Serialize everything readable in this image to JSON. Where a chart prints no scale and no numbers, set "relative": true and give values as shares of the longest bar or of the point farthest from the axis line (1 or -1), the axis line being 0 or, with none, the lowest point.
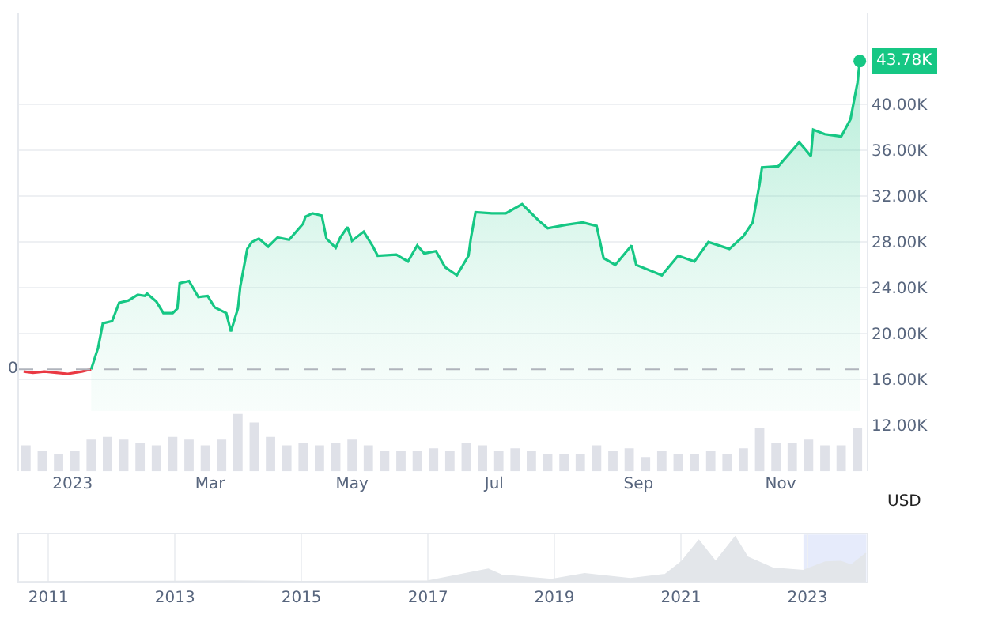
{
  "chart_data": [
    {
      "type": "line",
      "xlim": [
        "2022-12-09",
        "2023-12-08"
      ],
      "ylim": [
        8000,
        48000
      ],
      "xticks": [
        {
          "value": "2023-01-01",
          "label": "2023"
        },
        {
          "value": "2023-03-01",
          "label": "Mar"
        },
        {
          "value": "2023-05-01",
          "label": "May"
        },
        {
          "value": "2023-07-01",
          "label": "Jul"
        },
        {
          "value": "2023-09-01",
          "label": "Sep"
        },
        {
          "value": "2023-11-01",
          "label": "Nov"
        }
      ],
      "yticks": [
        {
          "value": 12000,
          "label": "12.00K"
        },
        {
          "value": 16000,
          "label": "16.00K"
        },
        {
          "value": 20000,
          "label": "20.00K"
        },
        {
          "value": 24000,
          "label": "24.00K"
        },
        {
          "value": 28000,
          "label": "28.00K"
        },
        {
          "value": 32000,
          "label": "32.00K"
        },
        {
          "value": 36000,
          "label": "36.00K"
        },
        {
          "value": 40000,
          "label": "40.00K"
        }
      ],
      "ylabel": "USD",
      "grid": "y",
      "legend": false,
      "ref_lines": [
        {
          "axis": "y",
          "value": 16900,
          "color": "#b0b4bc",
          "line_style": "dashed"
        }
      ],
      "annotations": [
        "0"
      ],
      "series": [
        {
          "type": "line",
          "color": "#ea3943",
          "x": [
            "2022-12-11",
            "2022-12-15",
            "2022-12-20",
            "2022-12-25",
            "2022-12-30",
            "2023-01-05",
            "2023-01-09"
          ],
          "values": [
            16700,
            16600,
            16700,
            16600,
            16500,
            16700,
            16900
          ]
        },
        {
          "type": "area",
          "color": "#16c784",
          "x": [
            "2023-01-09",
            "2023-01-12",
            "2023-01-14",
            "2023-01-18",
            "2023-01-21",
            "2023-01-25",
            "2023-01-29",
            "2023-02-01",
            "2023-02-02",
            "2023-02-06",
            "2023-02-09",
            "2023-02-13",
            "2023-02-15",
            "2023-02-16",
            "2023-02-20",
            "2023-02-24",
            "2023-02-28",
            "2023-03-03",
            "2023-03-08",
            "2023-03-10",
            "2023-03-13",
            "2023-03-14",
            "2023-03-17",
            "2023-03-19",
            "2023-03-22",
            "2023-03-26",
            "2023-03-30",
            "2023-04-04",
            "2023-04-10",
            "2023-04-11",
            "2023-04-14",
            "2023-04-18",
            "2023-04-20",
            "2023-04-24",
            "2023-04-26",
            "2023-04-29",
            "2023-05-01",
            "2023-05-06",
            "2023-05-10",
            "2023-05-12",
            "2023-05-20",
            "2023-05-25",
            "2023-05-29",
            "2023-06-01",
            "2023-06-06",
            "2023-06-10",
            "2023-06-15",
            "2023-06-20",
            "2023-06-21",
            "2023-06-23",
            "2023-06-30",
            "2023-07-06",
            "2023-07-13",
            "2023-07-20",
            "2023-07-24",
            "2023-08-01",
            "2023-08-08",
            "2023-08-14",
            "2023-08-17",
            "2023-08-22",
            "2023-08-29",
            "2023-08-31",
            "2023-09-11",
            "2023-09-18",
            "2023-09-25",
            "2023-10-01",
            "2023-10-10",
            "2023-10-16",
            "2023-10-20",
            "2023-10-23",
            "2023-10-24",
            "2023-10-31",
            "2023-11-09",
            "2023-11-14",
            "2023-11-15",
            "2023-11-20",
            "2023-11-27",
            "2023-12-01",
            "2023-12-04",
            "2023-12-05"
          ],
          "values": [
            16900,
            18800,
            20900,
            21100,
            22700,
            22900,
            23400,
            23300,
            23500,
            22800,
            21800,
            21800,
            22200,
            24400,
            24600,
            23200,
            23300,
            22300,
            21800,
            20200,
            22200,
            24100,
            27400,
            28000,
            28300,
            27600,
            28400,
            28200,
            29600,
            30200,
            30500,
            30300,
            28300,
            27500,
            28400,
            29300,
            28100,
            28900,
            27600,
            26800,
            26900,
            26300,
            27700,
            27000,
            27200,
            25800,
            25100,
            26800,
            28300,
            30600,
            30500,
            30500,
            31300,
            29900,
            29200,
            29500,
            29700,
            29400,
            26600,
            26000,
            27700,
            26000,
            25100,
            26800,
            26300,
            28000,
            27400,
            28500,
            29700,
            33100,
            34500,
            34600,
            36700,
            35500,
            37800,
            37400,
            37200,
            38700,
            41900,
            43780
          ],
          "value_labels": [
            null,
            null,
            null,
            null,
            null,
            null,
            null,
            null,
            null,
            null,
            null,
            null,
            null,
            null,
            null,
            null,
            null,
            null,
            null,
            null,
            null,
            null,
            null,
            null,
            null,
            null,
            null,
            null,
            null,
            null,
            null,
            null,
            null,
            null,
            null,
            null,
            null,
            null,
            null,
            null,
            null,
            null,
            null,
            null,
            null,
            null,
            null,
            null,
            null,
            null,
            null,
            null,
            null,
            null,
            null,
            null,
            null,
            null,
            null,
            null,
            null,
            null,
            null,
            null,
            null,
            null,
            null,
            null,
            null,
            null,
            null,
            null,
            null,
            null,
            null,
            null,
            null,
            null,
            null,
            "43.78K"
          ]
        }
      ]
    },
    {
      "type": "bar",
      "relative": true,
      "tick_labels": false,
      "xlim": [
        "2022-12-09",
        "2023-12-08"
      ],
      "color": "#dfe1e8",
      "x": [
        "2022-12-12",
        "2022-12-19",
        "2022-12-26",
        "2023-01-02",
        "2023-01-09",
        "2023-01-16",
        "2023-01-23",
        "2023-01-30",
        "2023-02-06",
        "2023-02-13",
        "2023-02-20",
        "2023-02-27",
        "2023-03-06",
        "2023-03-13",
        "2023-03-20",
        "2023-03-27",
        "2023-04-03",
        "2023-04-10",
        "2023-04-17",
        "2023-04-24",
        "2023-05-01",
        "2023-05-08",
        "2023-05-15",
        "2023-05-22",
        "2023-05-29",
        "2023-06-05",
        "2023-06-12",
        "2023-06-19",
        "2023-06-26",
        "2023-07-03",
        "2023-07-10",
        "2023-07-17",
        "2023-07-24",
        "2023-07-31",
        "2023-08-07",
        "2023-08-14",
        "2023-08-21",
        "2023-08-28",
        "2023-09-04",
        "2023-09-11",
        "2023-09-18",
        "2023-09-25",
        "2023-10-02",
        "2023-10-09",
        "2023-10-16",
        "2023-10-23",
        "2023-10-30",
        "2023-11-06",
        "2023-11-13",
        "2023-11-20",
        "2023-11-27",
        "2023-12-04"
      ],
      "values": [
        0.45,
        0.35,
        0.3,
        0.35,
        0.55,
        0.6,
        0.55,
        0.5,
        0.45,
        0.6,
        0.55,
        0.45,
        0.55,
        1.0,
        0.85,
        0.6,
        0.45,
        0.5,
        0.45,
        0.5,
        0.55,
        0.45,
        0.35,
        0.35,
        0.35,
        0.4,
        0.35,
        0.5,
        0.45,
        0.35,
        0.4,
        0.35,
        0.3,
        0.3,
        0.3,
        0.45,
        0.35,
        0.4,
        0.25,
        0.35,
        0.3,
        0.3,
        0.35,
        0.3,
        0.4,
        0.75,
        0.5,
        0.5,
        0.55,
        0.45,
        0.45,
        0.75
      ]
    },
    {
      "type": "area",
      "relative": true,
      "tick_labels": "x",
      "color": "#e3e6ea",
      "xlim": [
        "2010-07-15",
        "2023-12-10"
      ],
      "xticks": [
        {
          "value": "2011-01-01",
          "label": "2011"
        },
        {
          "value": "2013-01-01",
          "label": "2013"
        },
        {
          "value": "2015-01-01",
          "label": "2015"
        },
        {
          "value": "2017-01-01",
          "label": "2017"
        },
        {
          "value": "2019-01-01",
          "label": "2019"
        },
        {
          "value": "2021-01-01",
          "label": "2021"
        },
        {
          "value": "2023-01-01",
          "label": "2023"
        }
      ],
      "grid": "x",
      "bands": [
        {
          "axis": "x",
          "from": "2022-12-09",
          "to": "2023-12-08",
          "color": "#e6ebfb"
        }
      ],
      "x": [
        "2010-07-15",
        "2013-01-01",
        "2013-12-01",
        "2015-01-01",
        "2017-01-01",
        "2017-12-15",
        "2018-03-01",
        "2018-12-15",
        "2019-06-25",
        "2020-03-15",
        "2020-10-01",
        "2021-01-05",
        "2021-04-14",
        "2021-07-20",
        "2021-11-10",
        "2022-01-20",
        "2022-06-18",
        "2022-12-09",
        "2023-04-14",
        "2023-07-13",
        "2023-09-11",
        "2023-12-05"
      ],
      "values": [
        0.0,
        0.01,
        0.015,
        0.005,
        0.015,
        0.28,
        0.15,
        0.05,
        0.18,
        0.07,
        0.16,
        0.45,
        0.92,
        0.45,
        1.0,
        0.55,
        0.3,
        0.25,
        0.44,
        0.45,
        0.37,
        0.63
      ]
    }
  ]
}
